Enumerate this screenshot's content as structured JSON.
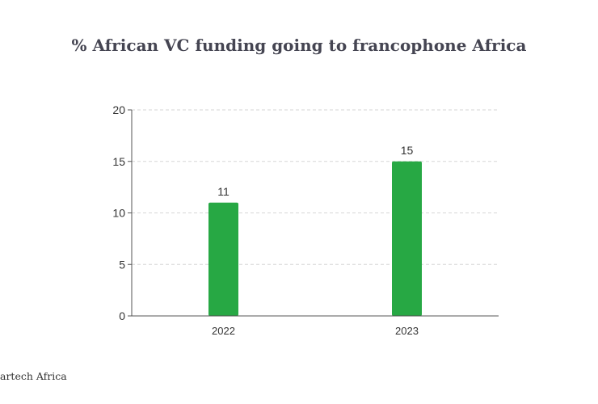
{
  "chart_data": {
    "type": "bar",
    "title": "% African VC funding going to francophone Africa",
    "categories": [
      "2022",
      "2023"
    ],
    "values": [
      11,
      15
    ],
    "data_labels": [
      "11",
      "15"
    ],
    "xlabel": "",
    "ylabel": "",
    "ylim": [
      0,
      20
    ],
    "yticks": [
      0,
      5,
      10,
      15,
      20
    ],
    "grid": true,
    "bar_color": "#27a844",
    "grid_color": "#d6d6d6",
    "axis_color": "#555555"
  },
  "source": "artech Africa"
}
